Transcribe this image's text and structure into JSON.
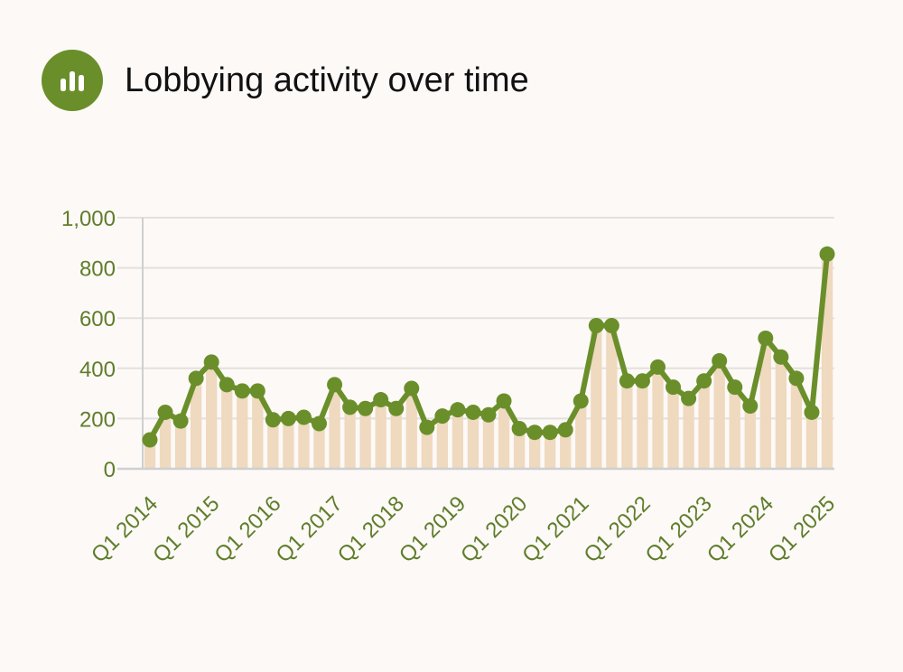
{
  "header": {
    "title": "Lobbying activity over time",
    "icon": "bar-chart-icon"
  },
  "colors": {
    "accent": "#6a8f2a",
    "bar": "#efd9bf",
    "grid": "#e3e0de",
    "axis": "#5f7d2a"
  },
  "chart_data": {
    "type": "line",
    "title": "Lobbying activity over time",
    "xlabel": "",
    "ylabel": "",
    "ylim": [
      0,
      1000
    ],
    "yticks": [
      0,
      200,
      400,
      600,
      800,
      1000
    ],
    "ytick_labels": [
      "0",
      "200",
      "400",
      "600",
      "800",
      "1,000"
    ],
    "grid": true,
    "legend": "none",
    "x": [
      "Q1 2014",
      "Q2 2014",
      "Q3 2014",
      "Q4 2014",
      "Q1 2015",
      "Q2 2015",
      "Q3 2015",
      "Q4 2015",
      "Q1 2016",
      "Q2 2016",
      "Q3 2016",
      "Q4 2016",
      "Q1 2017",
      "Q2 2017",
      "Q3 2017",
      "Q4 2017",
      "Q1 2018",
      "Q2 2018",
      "Q3 2018",
      "Q4 2018",
      "Q1 2019",
      "Q2 2019",
      "Q3 2019",
      "Q4 2019",
      "Q1 2020",
      "Q2 2020",
      "Q3 2020",
      "Q4 2020",
      "Q1 2021",
      "Q2 2021",
      "Q3 2021",
      "Q4 2021",
      "Q1 2022",
      "Q2 2022",
      "Q3 2022",
      "Q4 2022",
      "Q1 2023",
      "Q2 2023",
      "Q3 2023",
      "Q4 2023",
      "Q1 2024",
      "Q2 2024",
      "Q3 2024",
      "Q4 2024",
      "Q1 2025"
    ],
    "xtick_labels": [
      "Q1 2014",
      "Q1 2015",
      "Q1 2016",
      "Q1 2017",
      "Q1 2018",
      "Q1 2019",
      "Q1 2020",
      "Q1 2021",
      "Q1 2022",
      "Q1 2023",
      "Q1 2024",
      "Q1 2025"
    ],
    "series": [
      {
        "name": "Lobbying activity",
        "values": [
          115,
          225,
          190,
          360,
          425,
          335,
          310,
          310,
          195,
          200,
          205,
          180,
          335,
          245,
          240,
          275,
          240,
          320,
          165,
          210,
          235,
          225,
          215,
          270,
          160,
          145,
          145,
          155,
          270,
          570,
          570,
          350,
          350,
          405,
          325,
          280,
          350,
          430,
          325,
          250,
          520,
          445,
          360,
          225,
          855
        ]
      }
    ]
  }
}
